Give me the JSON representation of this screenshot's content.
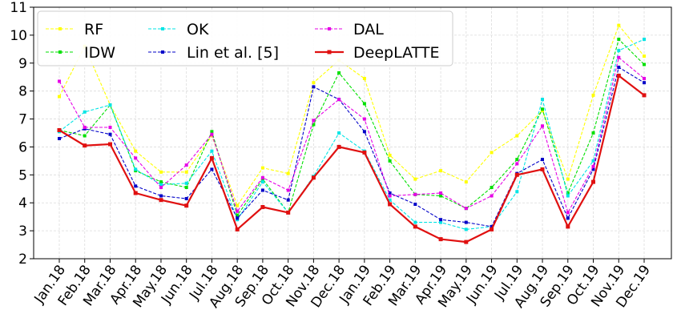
{
  "chart_data": {
    "type": "line",
    "title": "",
    "xlabel": "",
    "ylabel": "",
    "ylim": [
      2,
      11
    ],
    "yticks": [
      "2",
      "3",
      "4",
      "5",
      "6",
      "7",
      "8",
      "9",
      "10",
      "11"
    ],
    "grid": true,
    "legend_position": "top-left",
    "categories": [
      "Jan.18",
      "Feb.18",
      "Mar.18",
      "Apr.18",
      "May.18",
      "Jun.18",
      "Jul.18",
      "Aug.18",
      "Sep.18",
      "Oct.18",
      "Nov.18",
      "Dec.18",
      "Jan.19",
      "Feb.19",
      "Mar.19",
      "Apr.19",
      "May.19",
      "Jun.19",
      "Jul.19",
      "Aug.19",
      "Sep.19",
      "Oct.19",
      "Nov.19",
      "Dec.19"
    ],
    "series": [
      {
        "name": "RF",
        "color": "#ffff00",
        "dashed": true,
        "values": [
          7.8,
          9.6,
          7.5,
          5.85,
          5.1,
          5.1,
          6.4,
          3.9,
          5.25,
          5.05,
          8.3,
          9.1,
          8.45,
          5.7,
          4.85,
          5.15,
          4.75,
          5.8,
          6.4,
          7.3,
          4.85,
          7.85,
          10.35,
          9.25
        ]
      },
      {
        "name": "IDW",
        "color": "#00e000",
        "dashed": true,
        "values": [
          6.6,
          6.4,
          7.5,
          5.15,
          4.75,
          4.55,
          6.55,
          3.55,
          4.85,
          3.65,
          6.8,
          8.65,
          7.55,
          5.5,
          4.3,
          4.25,
          3.8,
          4.55,
          5.55,
          7.35,
          4.35,
          6.5,
          9.85,
          8.95
        ]
      },
      {
        "name": "OK",
        "color": "#00e5e5",
        "dashed": true,
        "values": [
          6.55,
          7.25,
          7.5,
          5.2,
          4.65,
          4.7,
          5.85,
          3.4,
          4.75,
          3.65,
          4.95,
          6.5,
          5.85,
          4.1,
          3.3,
          3.3,
          3.05,
          3.15,
          4.4,
          7.7,
          4.25,
          5.5,
          9.45,
          9.85
        ]
      },
      {
        "name": "Lin et al. [5]",
        "color": "#0000c8",
        "dashed": true,
        "values": [
          6.3,
          6.65,
          6.45,
          4.6,
          4.25,
          4.15,
          5.2,
          3.45,
          4.45,
          4.1,
          8.15,
          7.7,
          6.55,
          4.35,
          3.95,
          3.4,
          3.3,
          3.15,
          5.05,
          5.55,
          3.45,
          5.2,
          8.85,
          8.3
        ]
      },
      {
        "name": "DAL",
        "color": "#e600e6",
        "dashed": true,
        "values": [
          8.35,
          6.7,
          6.7,
          5.6,
          4.55,
          5.35,
          6.45,
          3.7,
          4.9,
          4.45,
          6.95,
          7.7,
          7.0,
          4.25,
          4.3,
          4.35,
          3.8,
          4.25,
          5.4,
          6.75,
          3.65,
          5.3,
          9.2,
          8.45
        ]
      },
      {
        "name": "DeepLATTE",
        "color": "#e01010",
        "dashed": false,
        "values": [
          6.6,
          6.05,
          6.1,
          4.35,
          4.1,
          3.9,
          5.6,
          3.05,
          3.85,
          3.65,
          4.9,
          6.0,
          5.8,
          3.95,
          3.15,
          2.7,
          2.6,
          3.05,
          5.0,
          5.2,
          3.15,
          4.75,
          8.55,
          7.85
        ]
      }
    ]
  }
}
